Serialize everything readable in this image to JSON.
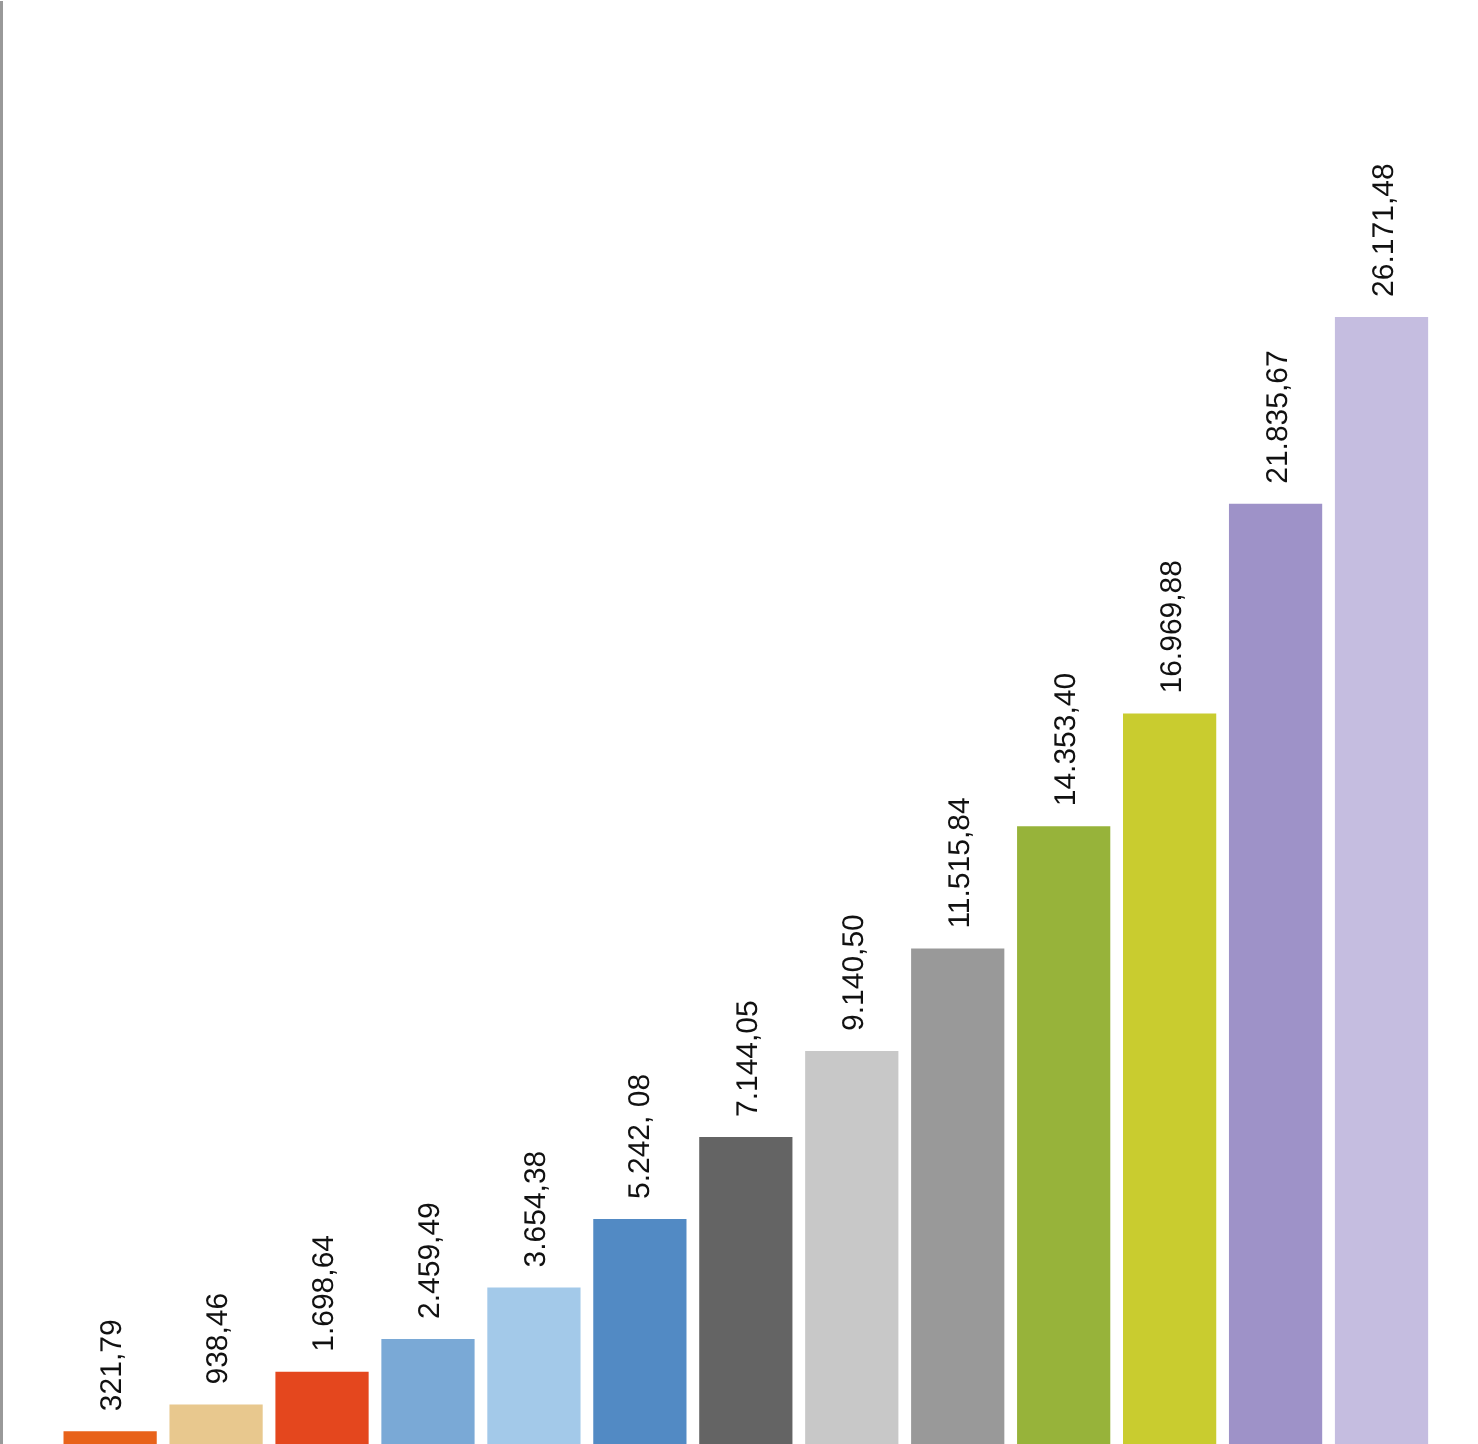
{
  "chart_data": {
    "type": "bar",
    "categories": [
      null,
      null,
      null,
      null,
      null,
      null,
      null,
      null,
      null,
      null,
      null,
      null,
      null
    ],
    "values": [
      321.79,
      938.46,
      1698.64,
      2459.49,
      3654.38,
      5242.08,
      7144.05,
      9140.5,
      11515.84,
      14353.4,
      16969.88,
      21835.67,
      26171.48
    ],
    "value_labels": [
      "321,79",
      "938,46",
      "1.698,64",
      "2.459,49",
      "3.654,38",
      "5.242, 08",
      "7.144,05",
      "9.140,50",
      "11.515,84",
      "14.353,40",
      "16.969,88",
      "21.835,67",
      "26.171,48"
    ],
    "colors": [
      "#e8621a",
      "#e8c88e",
      "#e4471e",
      "#7aa9d6",
      "#a3c9e9",
      "#528ac4",
      "#646464",
      "#c8c8c8",
      "#999999",
      "#97b33a",
      "#c9cc2f",
      "#9e92c8",
      "#c5bde0"
    ],
    "grid": false
  }
}
